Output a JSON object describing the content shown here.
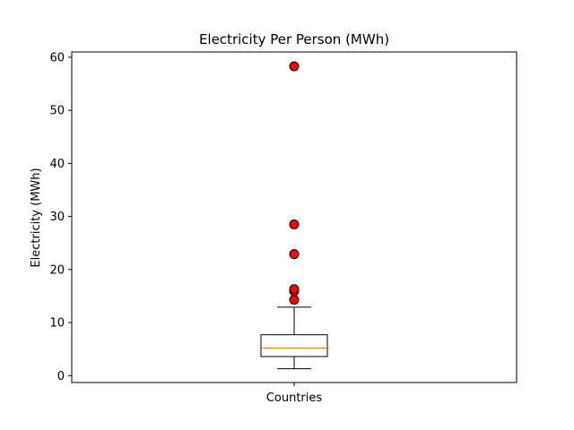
{
  "chart_data": {
    "type": "box",
    "title": "Electricity Per Person (MWh)",
    "xlabel": "",
    "ylabel": "Electricity (MWh)",
    "categories": [
      "Countries"
    ],
    "ylim": [
      -1.3,
      61.0
    ],
    "yticks": [
      0,
      10,
      20,
      30,
      40,
      50,
      60
    ],
    "grid": false,
    "box": {
      "whisker_low": 1.3,
      "q1": 3.6,
      "median": 5.2,
      "q3": 7.7,
      "whisker_high": 12.9
    },
    "outliers": [
      14.3,
      15.9,
      16.3,
      22.9,
      28.5,
      58.3
    ],
    "colors": {
      "median": "#ff7f0e",
      "outlier_fill": "#ff0000",
      "outlier_edge": "#000000"
    }
  }
}
